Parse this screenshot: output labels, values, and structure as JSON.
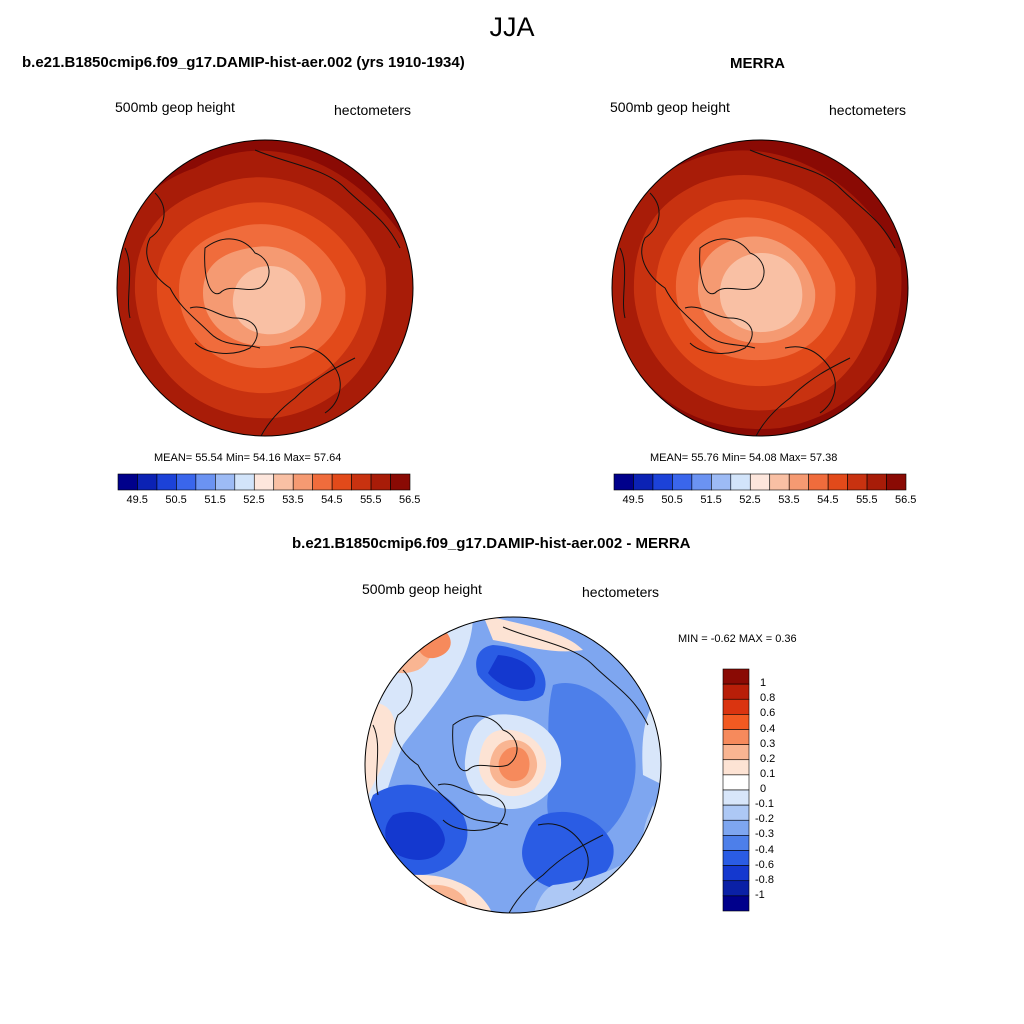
{
  "page": {
    "title": "JJA"
  },
  "panels": [
    {
      "id": "model",
      "title": "b.e21.B1850cmip6.f09_g17.DAMIP-hist-aer.002 (yrs 1910-1934)",
      "left_label": "500mb geop height",
      "right_label": "hectometers",
      "stats_text": "MEAN=  55.54  Min=  54.16  Max=  57.64",
      "stats": {
        "mean": 55.54,
        "min": 54.16,
        "max": 57.64
      }
    },
    {
      "id": "obs",
      "title": "MERRA",
      "left_label": "500mb geop height",
      "right_label": "hectometers",
      "stats_text": "MEAN=  55.76  Min=  54.08  Max=  57.38",
      "stats": {
        "mean": 55.76,
        "min": 54.08,
        "max": 57.38
      }
    },
    {
      "id": "diff",
      "title": "b.e21.B1850cmip6.f09_g17.DAMIP-hist-aer.002 - MERRA",
      "left_label": "500mb geop height",
      "right_label": "hectometers",
      "stats_text": "MIN =  -0.62 MAX =   0.36",
      "stats": {
        "min": -0.62,
        "max": 0.36
      }
    }
  ],
  "colorbar_abs": {
    "orientation": "horizontal",
    "colors": [
      "#00008b",
      "#0b22b4",
      "#1c42d8",
      "#3a66ec",
      "#6b93f2",
      "#9dbbf5",
      "#d2e4fa",
      "#fde6dc",
      "#f9c0a4",
      "#f59a72",
      "#f06c3c",
      "#e24a1a",
      "#c83210",
      "#a81c08",
      "#8a0a04"
    ],
    "tick_labels": [
      "49.5",
      "50.5",
      "51.5",
      "52.5",
      "53.5",
      "54.5",
      "55.5",
      "56.5"
    ]
  },
  "colorbar_diff": {
    "orientation": "vertical",
    "colors": [
      "#8a0a04",
      "#b81e08",
      "#da3410",
      "#f25a22",
      "#f68a5c",
      "#f9b592",
      "#fde3d4",
      "#ffffff",
      "#d8e6fa",
      "#adc8f5",
      "#7ea6f0",
      "#4d7fea",
      "#2a5ce4",
      "#1438cf",
      "#0a20a6",
      "#00008b"
    ],
    "tick_labels": [
      "1",
      "0.8",
      "0.6",
      "0.4",
      "0.3",
      "0.2",
      "0.1",
      "0",
      "-0.1",
      "-0.2",
      "-0.3",
      "-0.4",
      "-0.6",
      "-0.8",
      "-1"
    ]
  }
}
